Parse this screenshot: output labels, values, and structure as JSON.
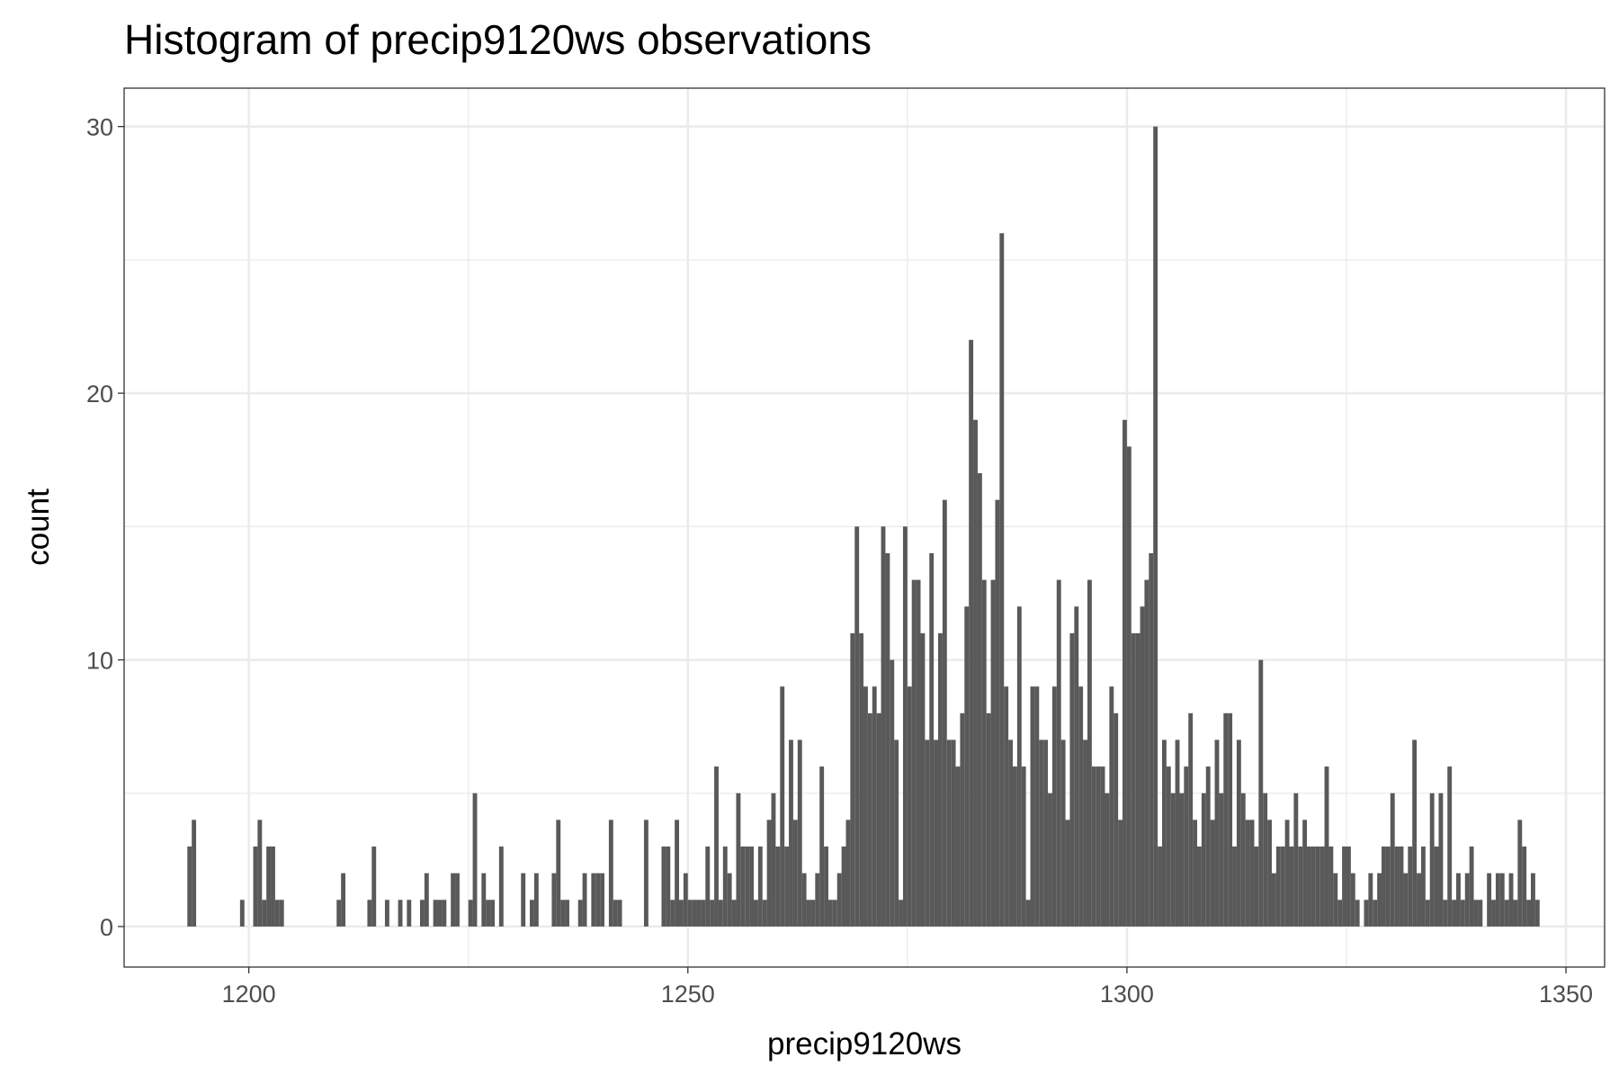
{
  "chart_data": {
    "type": "histogram",
    "title": "Histogram of precip9120ws observations",
    "x_label": "precip9120ws",
    "y_label": "count",
    "color": "#595959",
    "grid": true,
    "xlim": [
      1185.8,
      1354.4
    ],
    "ylim": [
      -1.52,
      31.44
    ],
    "xticks": [
      1200,
      1250,
      1300,
      1350
    ],
    "yticks": [
      0,
      10,
      20,
      30
    ],
    "x_minor_breaks": [
      1225,
      1275,
      1325
    ],
    "y_minor_breaks": [
      5,
      15,
      25
    ],
    "bins": [
      1193,
      1193.5,
      1194,
      1194.5,
      1195,
      1195.5,
      1196,
      1196.5,
      1197,
      1197.5,
      1198,
      1198.5,
      1199,
      1199.5,
      1200,
      1200.5,
      1201,
      1201.5,
      1202,
      1202.5,
      1203,
      1203.5,
      1204,
      1204.5,
      1205,
      1205.5,
      1206,
      1206.5,
      1207,
      1207.5,
      1208,
      1208.5,
      1209,
      1209.5,
      1210,
      1210.5,
      1211,
      1211.5,
      1212,
      1212.5,
      1213,
      1213.5,
      1214,
      1214.5,
      1215,
      1215.5,
      1216,
      1216.5,
      1217,
      1217.5,
      1218,
      1218.5,
      1219,
      1219.5,
      1220,
      1220.5,
      1221,
      1221.5,
      1222,
      1222.5,
      1223,
      1223.5,
      1224,
      1224.5,
      1225,
      1225.5,
      1226,
      1226.5,
      1227,
      1227.5,
      1228,
      1228.5,
      1229,
      1229.5,
      1230,
      1230.5,
      1231,
      1231.5,
      1232,
      1232.5,
      1233,
      1233.5,
      1234,
      1234.5,
      1235,
      1235.5,
      1236,
      1236.5,
      1237,
      1237.5,
      1238,
      1238.5,
      1239,
      1239.5,
      1240,
      1240.5,
      1241,
      1241.5,
      1242,
      1242.5,
      1243,
      1243.5,
      1244,
      1244.5,
      1245,
      1245.5,
      1246,
      1246.5,
      1247,
      1247.5,
      1248,
      1248.5,
      1249,
      1249.5,
      1250,
      1250.5,
      1251,
      1251.5,
      1252,
      1252.5,
      1253,
      1253.5,
      1254,
      1254.5,
      1255,
      1255.5,
      1256,
      1256.5,
      1257,
      1257.5,
      1258,
      1258.5,
      1259,
      1259.5,
      1260,
      1260.5,
      1261,
      1261.5,
      1262,
      1262.5,
      1263,
      1263.5,
      1264,
      1264.5,
      1265,
      1265.5,
      1266,
      1266.5,
      1267,
      1267.5,
      1268,
      1268.5,
      1269,
      1269.5,
      1270,
      1270.5,
      1271,
      1271.5,
      1272,
      1272.5,
      1273,
      1273.5,
      1274,
      1274.5,
      1275,
      1275.5,
      1276,
      1276.5,
      1277,
      1277.5,
      1278,
      1278.5,
      1279,
      1279.5,
      1280,
      1280.5,
      1281,
      1281.5,
      1282,
      1282.5,
      1283,
      1283.5,
      1284,
      1284.5,
      1285,
      1285.5,
      1286,
      1286.5,
      1287,
      1287.5,
      1288,
      1288.5,
      1289,
      1289.5,
      1290,
      1290.5,
      1291,
      1291.5,
      1292,
      1292.5,
      1293,
      1293.5,
      1294,
      1294.5,
      1295,
      1295.5,
      1296,
      1296.5,
      1297,
      1297.5,
      1298,
      1298.5,
      1299,
      1299.5,
      1300,
      1300.5,
      1301,
      1301.5,
      1302,
      1302.5,
      1303,
      1303.5,
      1304,
      1304.5,
      1305,
      1305.5,
      1306,
      1306.5,
      1307,
      1307.5,
      1308,
      1308.5,
      1309,
      1309.5,
      1310,
      1310.5,
      1311,
      1311.5,
      1312,
      1312.5,
      1313,
      1313.5,
      1314,
      1314.5,
      1315,
      1315.5,
      1316,
      1316.5,
      1317,
      1317.5,
      1318,
      1318.5,
      1319,
      1319.5,
      1320,
      1320.5,
      1321,
      1321.5,
      1322,
      1322.5,
      1323,
      1323.5,
      1324,
      1324.5,
      1325,
      1325.5,
      1326,
      1326.5,
      1327,
      1327.5,
      1328,
      1328.5,
      1329,
      1329.5,
      1330,
      1330.5,
      1331,
      1331.5,
      1332,
      1332.5,
      1333,
      1333.5,
      1334,
      1334.5,
      1335,
      1335.5,
      1336,
      1336.5,
      1337,
      1337.5,
      1338,
      1338.5,
      1339,
      1339.5,
      1340,
      1340.5,
      1341,
      1341.5,
      1342,
      1342.5,
      1343,
      1343.5,
      1344,
      1344.5,
      1345,
      1345.5,
      1346,
      1346.5,
      1347
    ],
    "values": [
      3,
      4,
      0,
      0,
      0,
      0,
      0,
      0,
      0,
      0,
      0,
      0,
      1,
      0,
      0,
      3,
      4,
      1,
      3,
      3,
      1,
      1,
      0,
      0,
      0,
      0,
      0,
      0,
      0,
      0,
      0,
      0,
      0,
      0,
      1,
      2,
      0,
      0,
      0,
      0,
      0,
      1,
      3,
      0,
      0,
      1,
      0,
      0,
      1,
      0,
      1,
      0,
      0,
      1,
      2,
      0,
      1,
      1,
      1,
      0,
      2,
      2,
      0,
      0,
      1,
      5,
      0,
      2,
      1,
      1,
      0,
      3,
      0,
      0,
      0,
      0,
      2,
      0,
      1,
      2,
      0,
      0,
      0,
      2,
      4,
      1,
      1,
      0,
      0,
      1,
      2,
      0,
      2,
      2,
      2,
      0,
      4,
      1,
      1,
      0,
      0,
      0,
      0,
      0,
      4,
      0,
      0,
      0,
      3,
      3,
      1,
      4,
      1,
      2,
      1,
      1,
      1,
      1,
      3,
      1,
      6,
      1,
      3,
      2,
      1,
      5,
      3,
      3,
      3,
      1,
      3,
      1,
      4,
      5,
      3,
      9,
      3,
      7,
      4,
      7,
      2,
      1,
      1,
      2,
      6,
      3,
      1,
      1,
      2,
      3,
      4,
      11,
      15,
      11,
      9,
      8,
      9,
      8,
      15,
      14,
      10,
      7,
      1,
      15,
      9,
      13,
      13,
      11,
      7,
      14,
      7,
      11,
      16,
      7,
      7,
      6,
      8,
      12,
      22,
      19,
      17,
      13,
      8,
      13,
      16,
      26,
      9,
      7,
      6,
      12,
      6,
      1,
      9,
      9,
      7,
      7,
      5,
      9,
      13,
      7,
      4,
      11,
      12,
      9,
      7,
      13,
      6,
      6,
      6,
      5,
      9,
      8,
      4,
      19,
      18,
      11,
      11,
      12,
      13,
      14,
      30,
      3,
      7,
      6,
      5,
      7,
      5,
      6,
      8,
      4,
      3,
      5,
      6,
      4,
      7,
      5,
      8,
      8,
      3,
      7,
      5,
      4,
      4,
      3,
      10,
      5,
      4,
      2,
      3,
      3,
      4,
      3,
      5,
      3,
      4,
      3,
      3,
      3,
      3,
      6,
      3,
      2,
      1,
      3,
      3,
      2,
      1,
      0,
      1,
      2,
      1,
      2,
      3,
      3,
      5,
      3,
      3,
      2,
      3,
      7,
      2,
      3,
      1,
      5,
      3,
      5,
      1,
      6,
      1,
      2,
      1,
      2,
      3,
      1,
      1,
      0,
      2,
      1,
      2,
      2,
      1,
      2,
      1,
      4,
      3,
      1,
      2,
      1
    ]
  }
}
